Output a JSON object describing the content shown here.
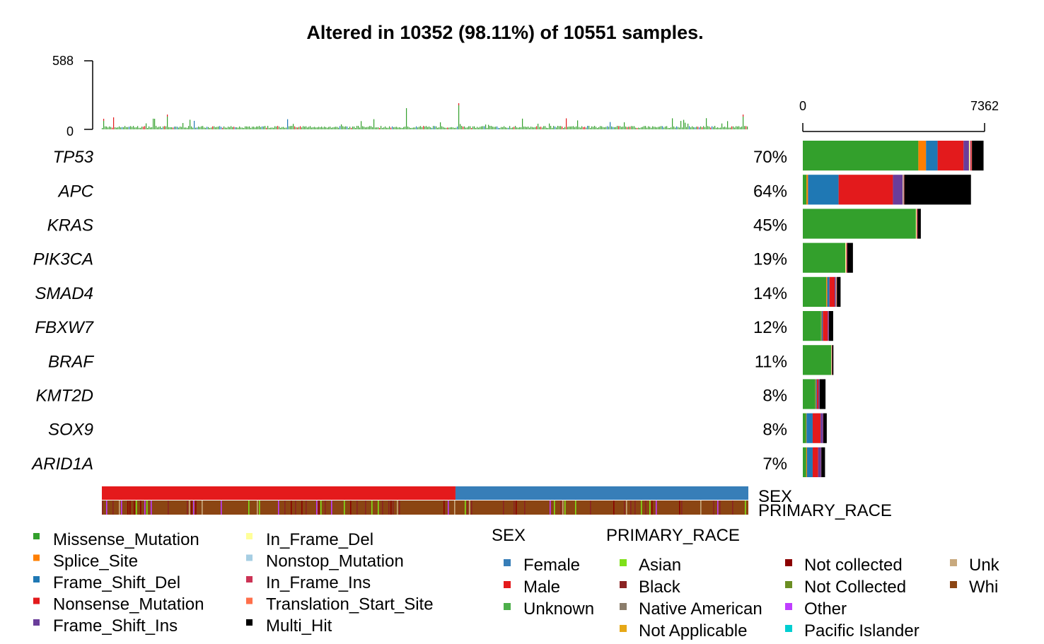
{
  "chart_data": {
    "type": "oncoplot",
    "title": "Altered in 10352 (98.11%) of 10551 samples.",
    "top_bar": {
      "ylim": [
        0,
        588
      ],
      "ticks": [
        "588",
        "0"
      ]
    },
    "side_bar": {
      "xlim": [
        0,
        7362
      ],
      "ticks": [
        "0",
        "7362"
      ],
      "order": [
        "Missense_Mutation",
        "Splice_Site",
        "Frame_Shift_Del",
        "Nonsense_Mutation",
        "Frame_Shift_Ins",
        "In_Frame_Del",
        "Nonstop_Mutation",
        "In_Frame_Ins",
        "Translation_Start_Site",
        "Multi_Hit"
      ]
    },
    "genes": [
      {
        "name": "TP53",
        "pct": "70%",
        "counts": [
          4680,
          310,
          470,
          1050,
          220,
          40,
          10,
          50,
          20,
          470
        ]
      },
      {
        "name": "APC",
        "pct": "64%",
        "counts": [
          150,
          60,
          1240,
          2200,
          400,
          20,
          10,
          20,
          10,
          2700
        ]
      },
      {
        "name": "KRAS",
        "pct": "45%",
        "counts": [
          4580,
          0,
          0,
          0,
          0,
          30,
          0,
          40,
          0,
          130
        ]
      },
      {
        "name": "PIK3CA",
        "pct": "19%",
        "counts": [
          1720,
          0,
          0,
          0,
          0,
          40,
          0,
          40,
          0,
          230
        ]
      },
      {
        "name": "SMAD4",
        "pct": "14%",
        "counts": [
          950,
          40,
          90,
          210,
          50,
          20,
          0,
          20,
          0,
          150
        ]
      },
      {
        "name": "FBXW7",
        "pct": "12%",
        "counts": [
          740,
          20,
          50,
          200,
          40,
          0,
          0,
          10,
          0,
          170
        ]
      },
      {
        "name": "BRAF",
        "pct": "11%",
        "counts": [
          1150,
          0,
          0,
          0,
          0,
          20,
          0,
          20,
          0,
          50
        ]
      },
      {
        "name": "KMT2D",
        "pct": "8%",
        "counts": [
          510,
          20,
          40,
          60,
          40,
          0,
          0,
          10,
          0,
          240
        ]
      },
      {
        "name": "SOX9",
        "pct": "8%",
        "counts": [
          130,
          20,
          250,
          320,
          100,
          0,
          0,
          10,
          0,
          140
        ]
      },
      {
        "name": "ARID1A",
        "pct": "7%",
        "counts": [
          140,
          30,
          230,
          220,
          120,
          0,
          0,
          10,
          0,
          150
        ]
      }
    ],
    "tracks": [
      {
        "name": "SEX",
        "segments": [
          {
            "level": "Male",
            "fraction": 0.547
          },
          {
            "level": "Female",
            "fraction": 0.453
          }
        ]
      },
      {
        "name": "PRIMARY_RACE",
        "base": "White"
      }
    ],
    "legend_variants": [
      {
        "label": "Missense_Mutation",
        "color": "#33a02c"
      },
      {
        "label": "Splice_Site",
        "color": "#ff7f00"
      },
      {
        "label": "Frame_Shift_Del",
        "color": "#1f78b4"
      },
      {
        "label": "Nonsense_Mutation",
        "color": "#e31a1c"
      },
      {
        "label": "Frame_Shift_Ins",
        "color": "#6a3d9a"
      },
      {
        "label": "In_Frame_Del",
        "color": "#ffff99"
      },
      {
        "label": "Nonstop_Mutation",
        "color": "#a6cee3"
      },
      {
        "label": "In_Frame_Ins",
        "color": "#cc3355"
      },
      {
        "label": "Translation_Start_Site",
        "color": "#ff6f4a"
      },
      {
        "label": "Multi_Hit",
        "color": "#000000"
      }
    ],
    "legend_sex": {
      "title": "SEX",
      "items": [
        {
          "label": "Female",
          "color": "#377eb8"
        },
        {
          "label": "Male",
          "color": "#e41a1c"
        },
        {
          "label": "Unknown",
          "color": "#4daf4a"
        }
      ]
    },
    "legend_race": {
      "title": "PRIMARY_RACE",
      "items": [
        {
          "label": "Asian",
          "color": "#7fe01a"
        },
        {
          "label": "Black",
          "color": "#8b2323"
        },
        {
          "label": "Native American",
          "color": "#8b7d6b"
        },
        {
          "label": "Not Applicable",
          "color": "#e6a817"
        },
        {
          "label": "Not collected",
          "color": "#8b0000"
        },
        {
          "label": "Not Collected",
          "color": "#6b8e23"
        },
        {
          "label": "Other",
          "color": "#bf3eff"
        },
        {
          "label": "Pacific Islander",
          "color": "#00ced1"
        },
        {
          "label": "Unk",
          "color": "#c8a97e"
        },
        {
          "label": "Whi",
          "color": "#8b4513"
        }
      ]
    }
  }
}
